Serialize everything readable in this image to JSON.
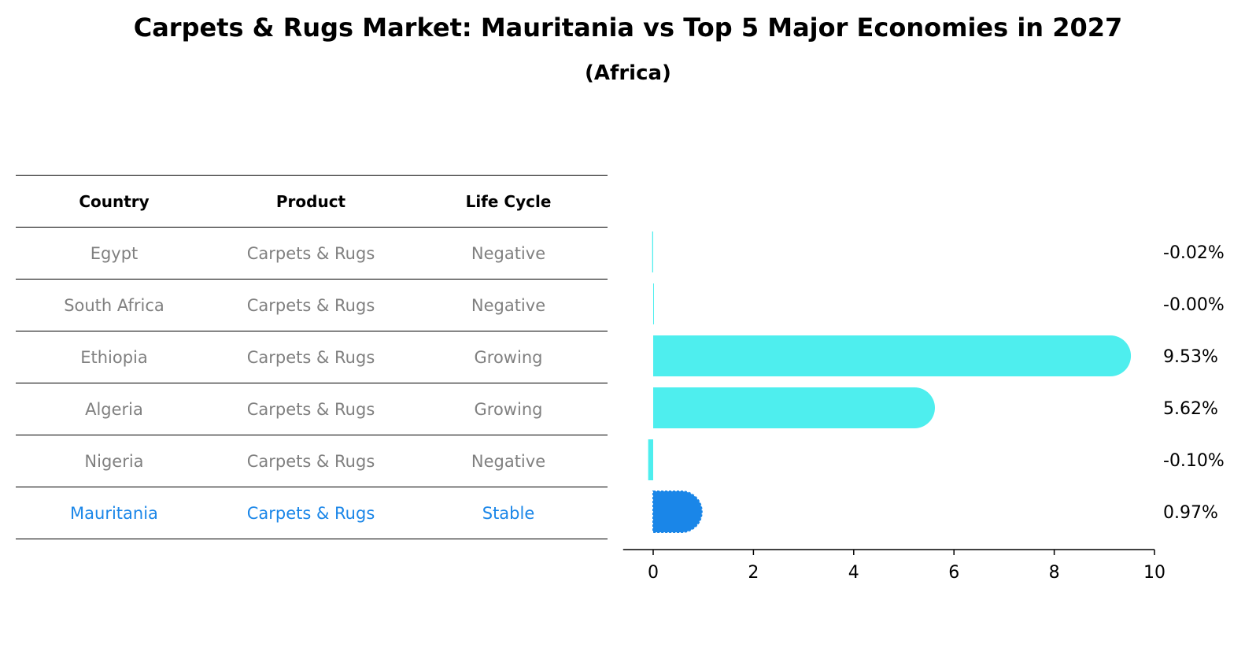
{
  "title": "Carpets & Rugs Market: Mauritania vs Top 5 Major Economies in 2027",
  "subtitle": "(Africa)",
  "table": {
    "headers": [
      "Country",
      "Product",
      "Life Cycle"
    ],
    "rows": [
      {
        "country": "Egypt",
        "product": "Carpets & Rugs",
        "life_cycle": "Negative"
      },
      {
        "country": "South Africa",
        "product": "Carpets & Rugs",
        "life_cycle": "Negative"
      },
      {
        "country": "Ethiopia",
        "product": "Carpets & Rugs",
        "life_cycle": "Growing"
      },
      {
        "country": "Algeria",
        "product": "Carpets & Rugs",
        "life_cycle": "Growing"
      },
      {
        "country": "Nigeria",
        "product": "Carpets & Rugs",
        "life_cycle": "Negative"
      },
      {
        "country": "Mauritania",
        "product": "Carpets & Rugs",
        "life_cycle": "Stable"
      }
    ]
  },
  "colors": {
    "bar": "#4eeeee",
    "highlight": "#1a86e8",
    "muted_text": "#808080"
  },
  "chart_data": {
    "type": "bar",
    "orientation": "horizontal",
    "categories": [
      "Egypt",
      "South Africa",
      "Ethiopia",
      "Algeria",
      "Nigeria",
      "Mauritania"
    ],
    "values": [
      -0.02,
      -0.0,
      9.53,
      5.62,
      -0.1,
      0.97
    ],
    "value_labels": [
      "-0.02%",
      "-0.00%",
      "9.53%",
      "5.62%",
      "-0.10%",
      "0.97%"
    ],
    "highlight": "Mauritania",
    "xlim": [
      -0.6,
      10
    ],
    "xticks": [
      0,
      2,
      4,
      6,
      8,
      10
    ],
    "grid": false
  }
}
